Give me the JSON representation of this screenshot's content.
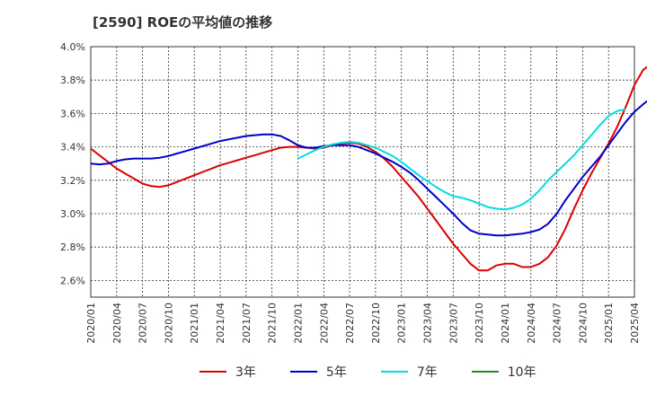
{
  "title": "[2590]  ROEの平均値の推移",
  "chart_data": {
    "type": "line",
    "title": "[2590]  ROEの平均値の推移",
    "x_ticks": [
      "2020/01",
      "2020/04",
      "2020/07",
      "2020/10",
      "2021/01",
      "2021/04",
      "2021/07",
      "2021/10",
      "2022/01",
      "2022/04",
      "2022/07",
      "2022/10",
      "2023/01",
      "2023/04",
      "2023/07",
      "2023/10",
      "2024/01",
      "2024/04",
      "2024/07",
      "2024/10",
      "2025/01",
      "2025/04"
    ],
    "y_ticks": [
      "2.6%",
      "2.8%",
      "3.0%",
      "3.2%",
      "3.4%",
      "3.6%",
      "3.8%",
      "4.0%"
    ],
    "ylim": [
      2.5,
      4.0
    ],
    "y_unit": "%",
    "grid": true,
    "legend_position": "bottom",
    "series": [
      {
        "name": "3年",
        "color": "#dd0000",
        "start": "2020/01",
        "values": [
          3.39,
          3.35,
          3.31,
          3.27,
          3.24,
          3.21,
          3.18,
          3.165,
          3.16,
          3.17,
          3.19,
          3.21,
          3.23,
          3.25,
          3.27,
          3.29,
          3.305,
          3.32,
          3.335,
          3.35,
          3.365,
          3.38,
          3.395,
          3.4,
          3.4,
          3.395,
          3.39,
          3.395,
          3.41,
          3.42,
          3.425,
          3.42,
          3.4,
          3.37,
          3.33,
          3.28,
          3.22,
          3.16,
          3.1,
          3.03,
          2.96,
          2.89,
          2.82,
          2.76,
          2.7,
          2.66,
          2.66,
          2.69,
          2.7,
          2.7,
          2.68,
          2.68,
          2.7,
          2.74,
          2.81,
          2.91,
          3.03,
          3.14,
          3.24,
          3.33,
          3.42,
          3.52,
          3.64,
          3.77,
          3.86,
          3.9,
          3.885
        ]
      },
      {
        "name": "5年",
        "color": "#0000cc",
        "start": "2020/01",
        "values": [
          3.3,
          3.295,
          3.3,
          3.315,
          3.325,
          3.33,
          3.33,
          3.33,
          3.335,
          3.345,
          3.36,
          3.375,
          3.39,
          3.405,
          3.42,
          3.435,
          3.445,
          3.455,
          3.465,
          3.47,
          3.475,
          3.475,
          3.465,
          3.44,
          3.41,
          3.395,
          3.395,
          3.405,
          3.41,
          3.41,
          3.41,
          3.4,
          3.38,
          3.36,
          3.335,
          3.31,
          3.28,
          3.245,
          3.2,
          3.15,
          3.1,
          3.05,
          3.0,
          2.945,
          2.9,
          2.88,
          2.875,
          2.87,
          2.87,
          2.875,
          2.88,
          2.89,
          2.905,
          2.94,
          3.0,
          3.08,
          3.15,
          3.22,
          3.28,
          3.34,
          3.41,
          3.48,
          3.55,
          3.61,
          3.655,
          3.695
        ]
      },
      {
        "name": "7年",
        "color": "#00dddd",
        "start": "2022/01",
        "values": [
          3.33,
          3.355,
          3.38,
          3.4,
          3.415,
          3.425,
          3.43,
          3.425,
          3.41,
          3.395,
          3.37,
          3.345,
          3.31,
          3.27,
          3.23,
          3.195,
          3.16,
          3.13,
          3.105,
          3.095,
          3.08,
          3.06,
          3.04,
          3.03,
          3.025,
          3.035,
          3.055,
          3.09,
          3.14,
          3.2,
          3.25,
          3.3,
          3.35,
          3.41,
          3.47,
          3.53,
          3.585,
          3.615,
          3.625
        ]
      },
      {
        "name": "10年",
        "color": "#228b22",
        "start": "2020/01",
        "values": []
      }
    ]
  }
}
